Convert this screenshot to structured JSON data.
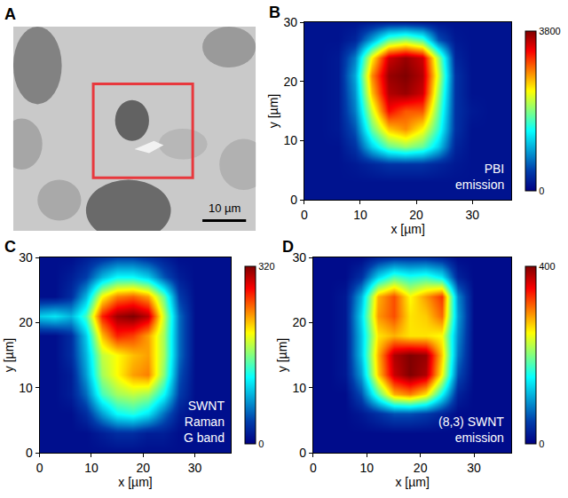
{
  "chart_data": [
    {
      "type": "image",
      "label": "A",
      "scale_bar": "10 µm"
    },
    {
      "type": "heatmap",
      "label": "B",
      "annotation": [
        "PBI",
        "emission"
      ],
      "x_label": "x [µm]",
      "y_label": "y [µm]",
      "xlim": [
        0,
        37
      ],
      "ylim": [
        0,
        30
      ],
      "xticks": [
        0,
        10,
        20,
        30
      ],
      "yticks": [
        0,
        10,
        20,
        30
      ],
      "color": "Jet",
      "colorbar_range": [
        0,
        3800
      ],
      "colorbar_ticks": [
        0,
        3800
      ],
      "x": [
        0,
        3,
        6,
        9,
        12,
        15,
        18,
        21,
        24,
        27,
        30,
        33,
        36
      ],
      "y": [
        0,
        3,
        6,
        9,
        12,
        15,
        18,
        21,
        24,
        27,
        30
      ],
      "z": [
        [
          150,
          150,
          150,
          150,
          150,
          150,
          150,
          150,
          150,
          150,
          150,
          150,
          150
        ],
        [
          150,
          150,
          150,
          150,
          150,
          150,
          150,
          150,
          150,
          150,
          150,
          150,
          150
        ],
        [
          150,
          150,
          150,
          200,
          300,
          400,
          400,
          400,
          300,
          200,
          150,
          150,
          150
        ],
        [
          150,
          150,
          150,
          400,
          1200,
          1800,
          2000,
          1800,
          1200,
          300,
          150,
          150,
          150
        ],
        [
          150,
          150,
          200,
          600,
          1800,
          2600,
          2800,
          2400,
          1600,
          400,
          150,
          150,
          150
        ],
        [
          150,
          150,
          200,
          800,
          2200,
          3300,
          3000,
          3000,
          1800,
          400,
          200,
          150,
          150
        ],
        [
          150,
          150,
          200,
          900,
          2600,
          3600,
          3700,
          3500,
          2000,
          400,
          150,
          150,
          150
        ],
        [
          150,
          150,
          200,
          1000,
          2800,
          3700,
          3800,
          3600,
          2200,
          400,
          150,
          150,
          150
        ],
        [
          150,
          150,
          200,
          800,
          2400,
          3500,
          3700,
          3500,
          2000,
          300,
          150,
          150,
          150
        ],
        [
          150,
          150,
          150,
          300,
          1000,
          1800,
          2000,
          1700,
          600,
          200,
          150,
          150,
          150
        ],
        [
          150,
          150,
          150,
          150,
          200,
          250,
          250,
          200,
          150,
          150,
          150,
          150,
          150
        ]
      ]
    },
    {
      "type": "heatmap",
      "label": "C",
      "annotation": [
        "SWNT",
        "Raman",
        "G band"
      ],
      "x_label": "x [µm]",
      "y_label": "y [µm]",
      "xlim": [
        0,
        37
      ],
      "ylim": [
        0,
        30
      ],
      "xticks": [
        0,
        10,
        20,
        30
      ],
      "yticks": [
        0,
        10,
        20,
        30
      ],
      "color": "Jet",
      "colorbar_range": [
        0,
        320
      ],
      "colorbar_ticks": [
        0,
        320
      ],
      "x": [
        0,
        3,
        6,
        9,
        12,
        15,
        18,
        21,
        24,
        27,
        30,
        33,
        36
      ],
      "y": [
        0,
        3,
        6,
        9,
        12,
        15,
        18,
        21,
        24,
        27,
        30
      ],
      "z": [
        [
          10,
          10,
          10,
          10,
          10,
          10,
          10,
          10,
          10,
          10,
          10,
          10,
          10
        ],
        [
          10,
          10,
          10,
          10,
          20,
          30,
          30,
          20,
          20,
          10,
          10,
          10,
          10
        ],
        [
          10,
          10,
          10,
          30,
          80,
          120,
          130,
          110,
          60,
          20,
          10,
          10,
          10
        ],
        [
          10,
          10,
          20,
          60,
          140,
          170,
          180,
          170,
          120,
          40,
          10,
          10,
          10
        ],
        [
          10,
          10,
          20,
          80,
          170,
          200,
          230,
          240,
          160,
          50,
          10,
          10,
          10
        ],
        [
          10,
          10,
          30,
          90,
          180,
          200,
          220,
          230,
          170,
          60,
          10,
          10,
          10
        ],
        [
          10,
          10,
          30,
          100,
          220,
          270,
          260,
          230,
          170,
          60,
          10,
          10,
          10
        ],
        [
          100,
          110,
          90,
          140,
          270,
          310,
          320,
          300,
          180,
          60,
          10,
          10,
          10
        ],
        [
          10,
          10,
          30,
          90,
          200,
          240,
          250,
          230,
          150,
          40,
          10,
          10,
          10
        ],
        [
          10,
          10,
          20,
          40,
          90,
          120,
          120,
          100,
          50,
          20,
          10,
          10,
          10
        ],
        [
          10,
          10,
          10,
          20,
          30,
          40,
          40,
          30,
          20,
          10,
          10,
          10,
          10
        ]
      ]
    },
    {
      "type": "heatmap",
      "label": "D",
      "annotation": [
        "(8,3) SWNT",
        "emission"
      ],
      "x_label": "x [µm]",
      "y_label": "y [µm]",
      "xlim": [
        0,
        37
      ],
      "ylim": [
        0,
        30
      ],
      "xticks": [
        0,
        10,
        20,
        30
      ],
      "yticks": [
        0,
        10,
        20,
        30
      ],
      "color": "Jet",
      "colorbar_range": [
        0,
        400
      ],
      "colorbar_ticks": [
        0,
        400
      ],
      "x": [
        0,
        3,
        6,
        9,
        12,
        15,
        18,
        21,
        24,
        27,
        30,
        33,
        36
      ],
      "y": [
        0,
        3,
        6,
        9,
        12,
        15,
        18,
        21,
        24,
        27,
        30
      ],
      "z": [
        [
          10,
          10,
          10,
          10,
          10,
          10,
          10,
          10,
          10,
          10,
          10,
          10,
          10
        ],
        [
          10,
          10,
          10,
          10,
          10,
          10,
          10,
          10,
          10,
          10,
          10,
          10,
          10
        ],
        [
          10,
          10,
          10,
          20,
          40,
          60,
          60,
          50,
          30,
          10,
          10,
          10,
          10
        ],
        [
          10,
          10,
          10,
          60,
          180,
          280,
          300,
          260,
          150,
          30,
          10,
          10,
          10
        ],
        [
          10,
          10,
          20,
          100,
          270,
          370,
          400,
          380,
          250,
          60,
          10,
          10,
          10
        ],
        [
          10,
          10,
          20,
          120,
          280,
          380,
          400,
          390,
          270,
          80,
          10,
          10,
          10
        ],
        [
          10,
          10,
          20,
          120,
          260,
          280,
          260,
          260,
          250,
          90,
          10,
          10,
          10
        ],
        [
          10,
          10,
          20,
          130,
          290,
          320,
          260,
          270,
          310,
          100,
          10,
          10,
          10
        ],
        [
          10,
          10,
          20,
          110,
          280,
          320,
          250,
          290,
          330,
          90,
          10,
          10,
          10
        ],
        [
          10,
          10,
          10,
          40,
          130,
          180,
          160,
          170,
          140,
          30,
          10,
          10,
          10
        ],
        [
          10,
          10,
          10,
          10,
          30,
          40,
          40,
          40,
          30,
          10,
          10,
          10,
          10
        ]
      ]
    }
  ]
}
